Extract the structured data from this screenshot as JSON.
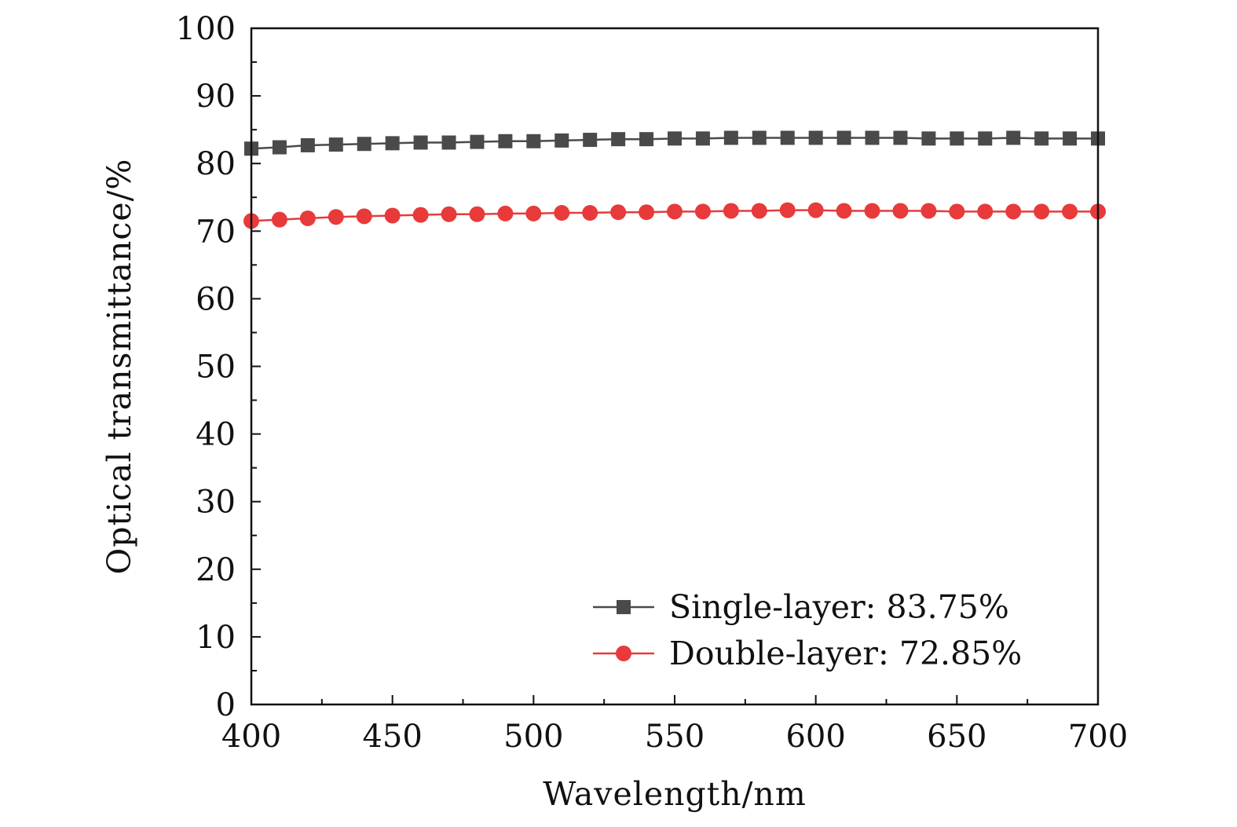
{
  "chart_data": {
    "type": "line",
    "xlabel": "Wavelength/nm",
    "ylabel": "Optical transmittance/%",
    "xlim": [
      400,
      700
    ],
    "ylim": [
      0,
      100
    ],
    "xticks": [
      400,
      450,
      500,
      550,
      600,
      650,
      700
    ],
    "yticks": [
      0,
      10,
      20,
      30,
      40,
      50,
      60,
      70,
      80,
      90,
      100
    ],
    "grid": false,
    "legend_position": "bottom-right",
    "x": [
      400,
      410,
      420,
      430,
      440,
      450,
      460,
      470,
      480,
      490,
      500,
      510,
      520,
      530,
      540,
      550,
      560,
      570,
      580,
      590,
      600,
      610,
      620,
      630,
      640,
      650,
      660,
      670,
      680,
      690,
      700
    ],
    "series": [
      {
        "name": "Single-layer: 83.75%",
        "marker": "square",
        "color": "#4a4a4a",
        "values": [
          82.2,
          82.4,
          82.7,
          82.8,
          82.9,
          83.0,
          83.1,
          83.1,
          83.2,
          83.3,
          83.3,
          83.4,
          83.5,
          83.6,
          83.6,
          83.7,
          83.7,
          83.8,
          83.8,
          83.8,
          83.8,
          83.8,
          83.8,
          83.8,
          83.7,
          83.7,
          83.7,
          83.8,
          83.7,
          83.7,
          83.7
        ]
      },
      {
        "name": "Double-layer: 72.85%",
        "marker": "circle",
        "color": "#e83a3a",
        "values": [
          71.5,
          71.7,
          71.9,
          72.1,
          72.2,
          72.3,
          72.4,
          72.5,
          72.5,
          72.6,
          72.6,
          72.7,
          72.7,
          72.8,
          72.8,
          72.9,
          72.9,
          73.0,
          73.0,
          73.1,
          73.1,
          73.0,
          73.0,
          73.0,
          73.0,
          72.9,
          72.9,
          72.9,
          72.9,
          72.9,
          72.9
        ]
      }
    ]
  }
}
